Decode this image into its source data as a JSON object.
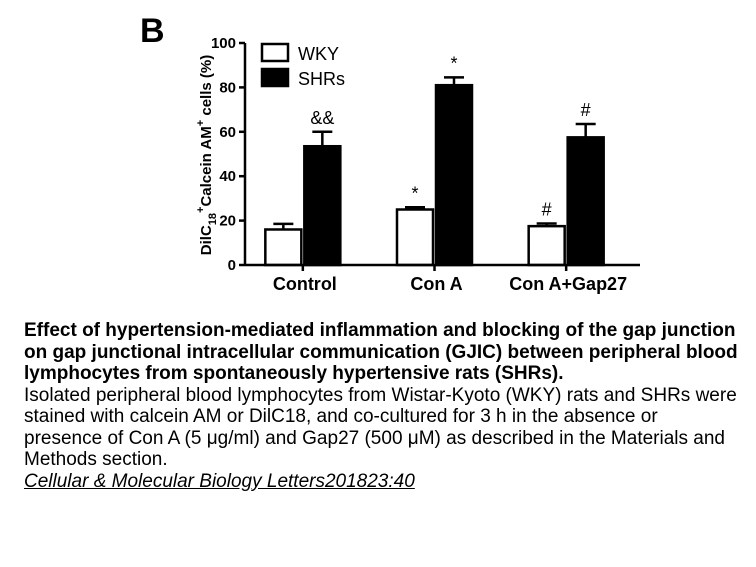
{
  "panel_label": "B",
  "chart_data": {
    "type": "bar",
    "ylabel_prefix": "DilC",
    "ylabel_sub": "18",
    "ylabel_sup1": "+",
    "ylabel_mid": "Calcein AM",
    "ylabel_sup2": "+",
    "ylabel_suffix": " cells (%)",
    "ylim": [
      0,
      100
    ],
    "yticks": [
      "0",
      "20",
      "40",
      "60",
      "80",
      "100"
    ],
    "categories": [
      "Control",
      "Con A",
      "Con A+Gap27"
    ],
    "series": [
      {
        "name": "WKY",
        "color": "#ffffff",
        "values": [
          16,
          25,
          17.5
        ],
        "errors": [
          2.5,
          1,
          1.2
        ],
        "annotations": [
          "",
          "*",
          "#"
        ]
      },
      {
        "name": "SHRs",
        "color": "#000000",
        "values": [
          53.5,
          81,
          57.5
        ],
        "errors": [
          6.5,
          3.5,
          6
        ],
        "annotations": [
          "&&",
          "*",
          "#"
        ]
      }
    ],
    "legend_position": "top-left",
    "grid": false
  },
  "caption": {
    "title": "Effect of hypertension-mediated inflammation and blocking of the gap junction on gap junctional intracellular communication (GJIC) between peripheral blood lymphocytes from spontaneously hypertensive rats (SHRs).",
    "body": "Isolated peripheral blood lymphocytes from Wistar-Kyoto (WKY) rats and SHRs were stained with calcein AM or DilC18, and co-cultured for 3 h in the absence or presence of Con A (5 μg/ml) and Gap27 (500 μM) as described in the Materials and Methods section.",
    "citation": "Cellular & Molecular Biology Letters201823:40"
  }
}
